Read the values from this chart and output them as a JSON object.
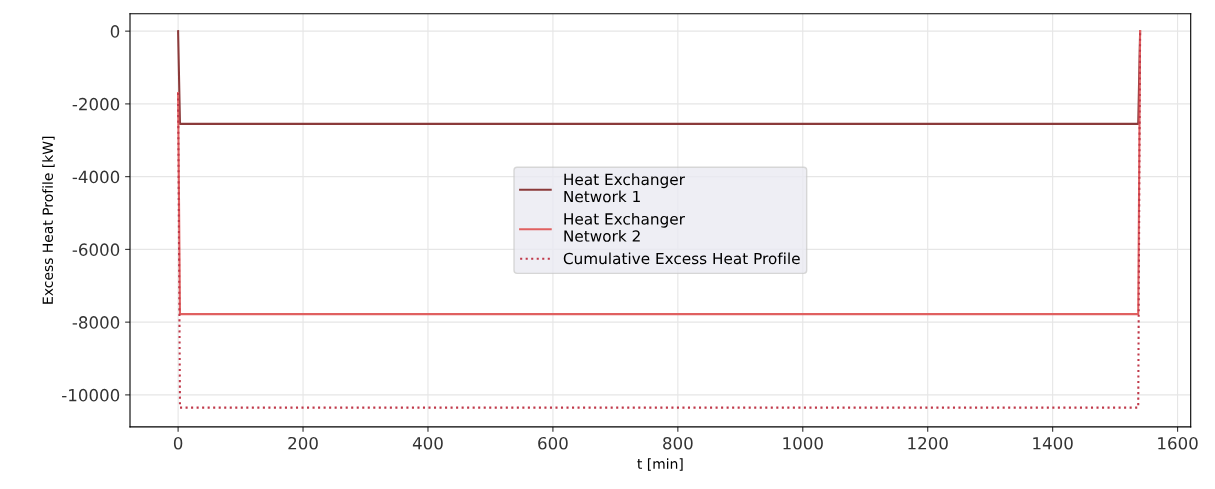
{
  "chart_data": {
    "type": "line",
    "xlabel": "t [min]",
    "ylabel": "Excess Heat Profile [kW]",
    "xlim": [
      -77,
      1621
    ],
    "xticks": [
      0,
      200,
      400,
      600,
      800,
      1000,
      1200,
      1400,
      1600
    ],
    "ylim": [
      -10880,
      480
    ],
    "yticks": [
      -10000,
      -8000,
      -6000,
      -4000,
      -2000,
      0
    ],
    "grid": true,
    "legend": "center",
    "series": [
      {
        "name": "Heat Exchanger\nNetwork 1",
        "color": "#8b3a3a",
        "line_style": "solid",
        "x": [
          0,
          3,
          1537,
          1540
        ],
        "values": [
          0,
          -2550,
          -2550,
          0
        ]
      },
      {
        "name": "Heat Exchanger\nNetwork 2",
        "color": "#e06060",
        "line_style": "solid",
        "x": [
          0,
          3,
          1537,
          1540
        ],
        "values": [
          -1700,
          -7780,
          -7780,
          0
        ]
      },
      {
        "name": "Cumulative Excess Heat Profile",
        "color": "#c0394a",
        "line_style": "dotted",
        "x": [
          0,
          3,
          1537,
          1540
        ],
        "values": [
          -1700,
          -10350,
          -10350,
          0
        ]
      }
    ]
  }
}
